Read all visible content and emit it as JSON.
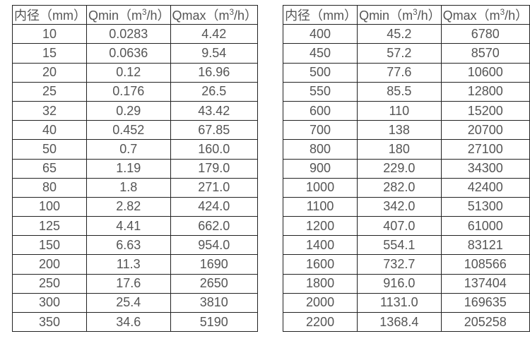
{
  "page": {
    "background_color": "#ffffff",
    "border_color": "#222222",
    "text_color": "#555555"
  },
  "tables": [
    {
      "name": "flow-rates-small-diameters",
      "headers": [
        "内径（mm）",
        "Qmin（m³/h）",
        "Qmax（m³/h）"
      ],
      "rows": [
        [
          "10",
          "0.0283",
          "4.42"
        ],
        [
          "15",
          "0.0636",
          "9.54"
        ],
        [
          "20",
          "0.12",
          "16.96"
        ],
        [
          "25",
          "0.176",
          "26.5"
        ],
        [
          "32",
          "0.29",
          "43.42"
        ],
        [
          "40",
          "0.452",
          "67.85"
        ],
        [
          "50",
          "0.7",
          "160.0"
        ],
        [
          "65",
          "1.19",
          "179.0"
        ],
        [
          "80",
          "1.8",
          "271.0"
        ],
        [
          "100",
          "2.82",
          "424.0"
        ],
        [
          "125",
          "4.41",
          "662.0"
        ],
        [
          "150",
          "6.63",
          "954.0"
        ],
        [
          "200",
          "11.3",
          "1690"
        ],
        [
          "250",
          "17.6",
          "2650"
        ],
        [
          "300",
          "25.4",
          "3810"
        ],
        [
          "350",
          "34.6",
          "5190"
        ]
      ]
    },
    {
      "name": "flow-rates-large-diameters",
      "headers": [
        "内径（mm）",
        "Qmin（m³/h）",
        "Qmax（m³/h）"
      ],
      "rows": [
        [
          "400",
          "45.2",
          "6780"
        ],
        [
          "450",
          "57.2",
          "8570"
        ],
        [
          "500",
          "77.6",
          "10600"
        ],
        [
          "550",
          "85.5",
          "12800"
        ],
        [
          "600",
          "110",
          "15200"
        ],
        [
          "700",
          "138",
          "20700"
        ],
        [
          "800",
          "180",
          "27100"
        ],
        [
          "900",
          "229.0",
          "34300"
        ],
        [
          "1000",
          "282.0",
          "42400"
        ],
        [
          "1100",
          "342.0",
          "51300"
        ],
        [
          "1200",
          "407.0",
          "61000"
        ],
        [
          "1400",
          "554.1",
          "83121"
        ],
        [
          "1600",
          "732.7",
          "108566"
        ],
        [
          "1800",
          "916.0",
          "137404"
        ],
        [
          "2000",
          "1131.0",
          "169635"
        ],
        [
          "2200",
          "1368.4",
          "205258"
        ]
      ]
    }
  ]
}
